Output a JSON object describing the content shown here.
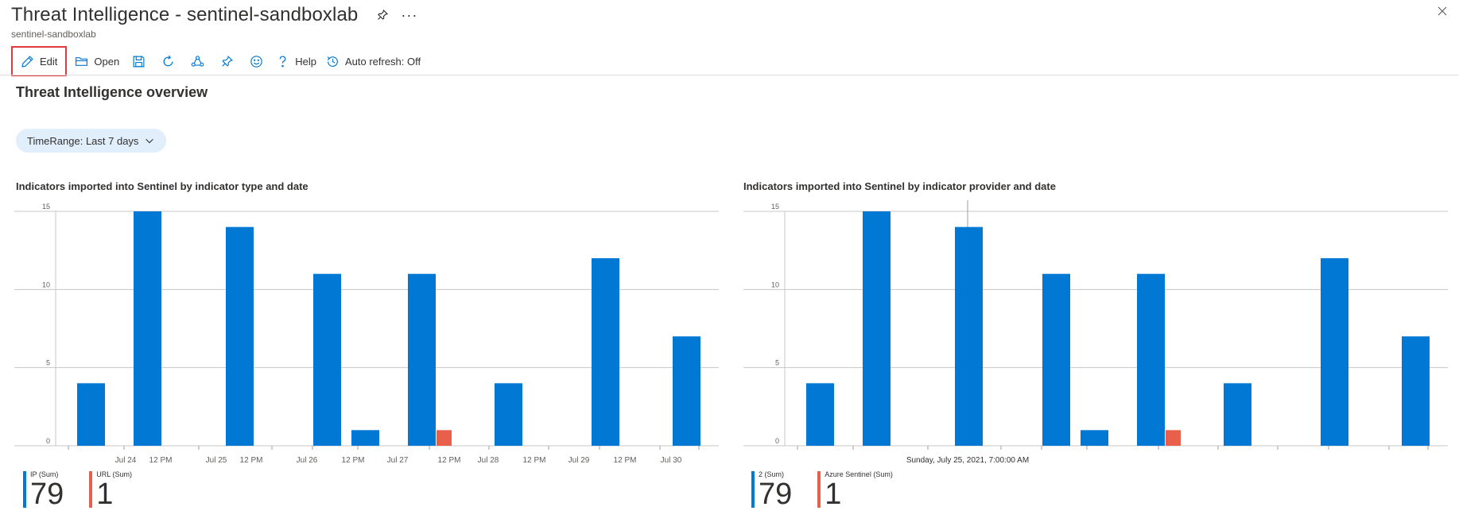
{
  "header": {
    "title": "Threat Intelligence - sentinel-sandboxlab",
    "subtitle": "sentinel-sandboxlab",
    "more": "···"
  },
  "toolbar": {
    "edit_label": "Edit",
    "open_label": "Open",
    "help_label": "Help",
    "auto_refresh_label": "Auto refresh: Off"
  },
  "overview_title": "Threat Intelligence overview",
  "time_range": {
    "label": "TimeRange: Last 7 days"
  },
  "colors": {
    "blue": "#0078d4",
    "red": "#e8604c",
    "accent_border": "#e0383e"
  },
  "chart_data": [
    {
      "type": "bar",
      "title": "Indicators imported into Sentinel by indicator type and date",
      "ylim": [
        0,
        15
      ],
      "yticks": [
        "0",
        "5",
        "10",
        "15"
      ],
      "xticks": [
        "Jul 24",
        "12 PM",
        "Jul 25",
        "12 PM",
        "Jul 26",
        "12 PM",
        "Jul 27",
        "12 PM",
        "Jul 28",
        "12 PM",
        "Jul 29",
        "12 PM",
        "Jul 30"
      ],
      "series": [
        {
          "name": "IP (Sum)",
          "color": "#0078d4",
          "points": [
            {
              "slot": 0,
              "value": 4
            },
            {
              "slot": 1,
              "value": 15
            },
            {
              "slot": 2,
              "value": 14
            },
            {
              "slot": 3,
              "value": 11
            },
            {
              "slot": 4,
              "value": 1
            },
            {
              "slot": 5,
              "value": 11
            },
            {
              "slot": 6,
              "value": 4
            },
            {
              "slot": 7,
              "value": 12
            },
            {
              "slot": 8,
              "value": 7
            }
          ]
        },
        {
          "name": "URL (Sum)",
          "color": "#e8604c",
          "points": [
            {
              "slot": 5,
              "value": 1
            }
          ]
        }
      ],
      "totals": [
        "79",
        "1"
      ]
    },
    {
      "type": "bar",
      "title": "Indicators imported into Sentinel by indicator provider and date",
      "ylim": [
        0,
        15
      ],
      "yticks": [
        "0",
        "5",
        "10",
        "15"
      ],
      "hover_label": "Sunday, July 25, 2021, 7:00:00 AM",
      "series": [
        {
          "name": "2 (Sum)",
          "color": "#0078d4",
          "points": [
            {
              "slot": 0,
              "value": 4
            },
            {
              "slot": 1,
              "value": 15
            },
            {
              "slot": 2,
              "value": 14
            },
            {
              "slot": 3,
              "value": 11
            },
            {
              "slot": 4,
              "value": 1
            },
            {
              "slot": 5,
              "value": 11
            },
            {
              "slot": 6,
              "value": 4
            },
            {
              "slot": 7,
              "value": 12
            },
            {
              "slot": 8,
              "value": 7
            }
          ]
        },
        {
          "name": "Azure Sentinel (Sum)",
          "color": "#e8604c",
          "points": [
            {
              "slot": 5,
              "value": 1
            }
          ]
        }
      ],
      "totals": [
        "79",
        "1"
      ]
    }
  ]
}
